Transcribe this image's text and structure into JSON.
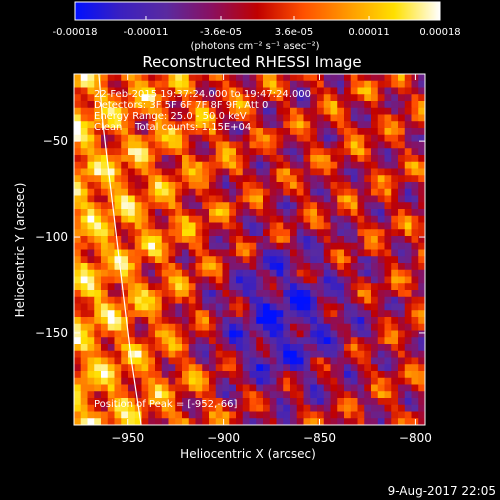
{
  "colorbar": {
    "ticks": [
      "-0.00018",
      "-0.00011",
      "-3.6e-05",
      "3.6e-05",
      "0.00011",
      "0.00018"
    ],
    "unit_label": "(photons cm⁻² s⁻¹ asec⁻²)",
    "range": [
      -0.00018,
      0.00018
    ],
    "colors": [
      "#0010ff",
      "#3a20c0",
      "#5a2aa0",
      "#8a1060",
      "#c00000",
      "#ff5000",
      "#ff9a00",
      "#ffe000",
      "#ffffff"
    ]
  },
  "chart_data": {
    "type": "heatmap",
    "title": "Reconstructed RHESSI Image",
    "xlabel": "Heliocentric X (arcsec)",
    "ylabel": "Heliocentric Y (arcsec)",
    "xlim": [
      -978,
      -795
    ],
    "ylim": [
      -198,
      -15
    ],
    "x_ticks": [
      -950,
      -900,
      -850,
      -800
    ],
    "y_ticks": [
      -50,
      -100,
      -150
    ],
    "annotations": [
      "22-Feb-2015 19:37:24.000 to 19:47:24.000",
      "Detectors: 3F 5F 6F 7F 8F 9F, Att 0",
      "Energy Range: 25.0 - 50.0 keV",
      "Clean    Total counts: 1.15E+04"
    ],
    "peak_label": "Position of Peak = [-952,-66]",
    "peak": [
      -952,
      -66
    ],
    "limb_x": [
      -965,
      -963,
      -960,
      -957,
      -954,
      -951,
      -948,
      -945,
      -943
    ],
    "limb_y": [
      -15,
      -40,
      -65,
      -90,
      -115,
      -140,
      -165,
      -185,
      -198
    ]
  },
  "footer": {
    "date": "9-Aug-2017 22:05"
  }
}
